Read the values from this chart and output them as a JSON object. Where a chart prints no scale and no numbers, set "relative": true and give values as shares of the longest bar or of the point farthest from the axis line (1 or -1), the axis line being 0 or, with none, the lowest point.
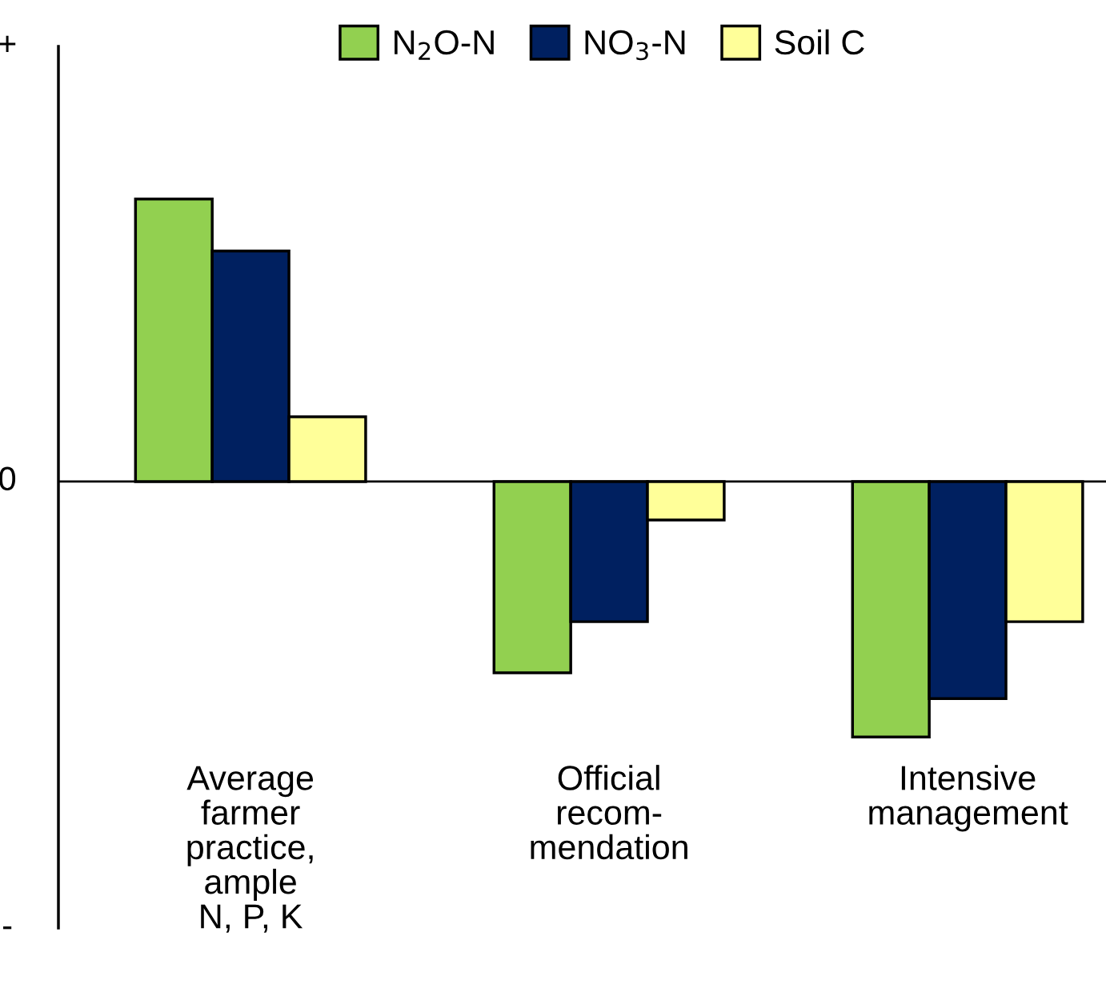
{
  "chart_data": {
    "type": "bar",
    "relative": true,
    "categories": [
      "Average\nfarmer\npractice,\nample\nN, P, K",
      "Official\nrecom-\nmendation",
      "Intensive\nmanagement"
    ],
    "series": [
      {
        "name": "N$_{2}$O-N",
        "color": "#92d050",
        "values": [
          1,
          -0.677,
          -0.904
        ]
      },
      {
        "name": "NO$_{3}$-N",
        "color": "#002060",
        "values": [
          0.816,
          -0.496,
          -0.768
        ]
      },
      {
        "name": "Soil C",
        "color": "#ffff99",
        "values": [
          0.229,
          -0.136,
          -0.496
        ]
      }
    ],
    "annotations": [
      "+",
      "0",
      "-"
    ],
    "legend": "top"
  }
}
